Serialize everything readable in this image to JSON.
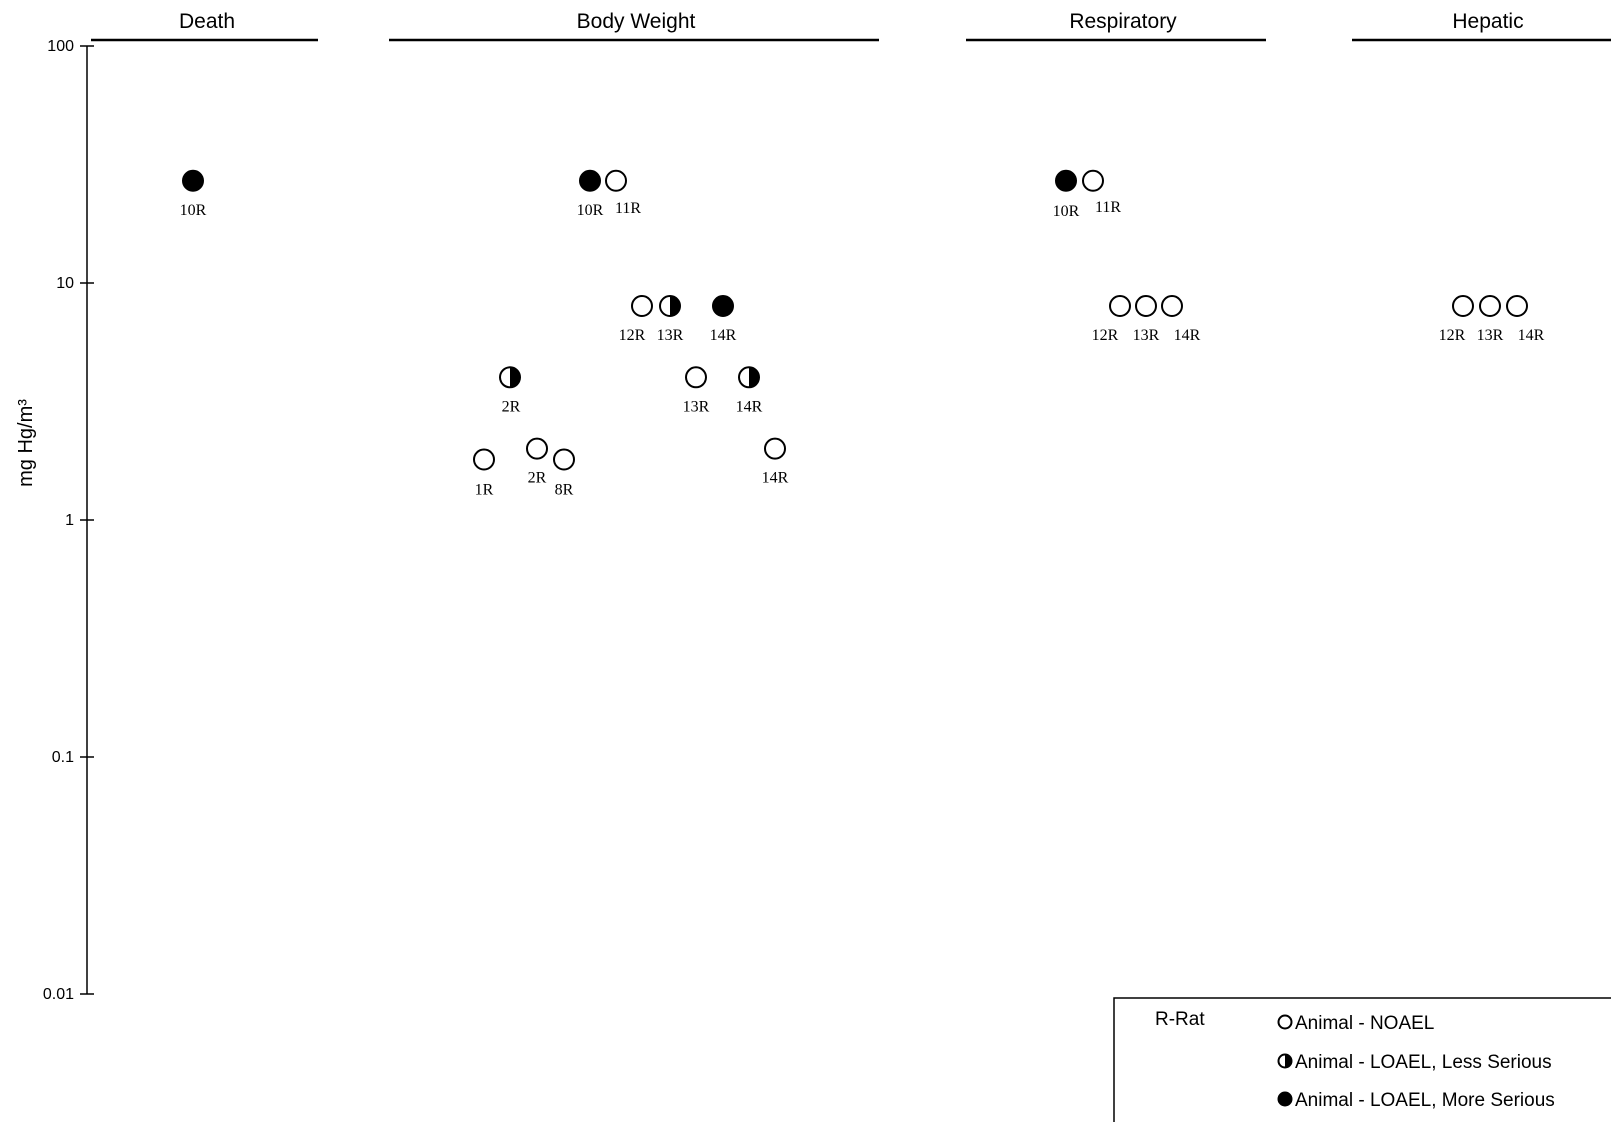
{
  "chart_data": {
    "type": "scatter",
    "ylabel": "mg Hg/m³",
    "yscale": "log",
    "ylim": [
      0.01,
      100
    ],
    "y_ticks": [
      {
        "value": 100,
        "label": "100"
      },
      {
        "value": 10,
        "label": "10"
      },
      {
        "value": 1,
        "label": "1"
      },
      {
        "value": 0.1,
        "label": "0.1"
      },
      {
        "value": 0.01,
        "label": "0.01"
      }
    ],
    "categories": [
      "Death",
      "Body Weight",
      "Respiratory",
      "Hepatic"
    ],
    "points": [
      {
        "category": "Death",
        "y": 27,
        "label": "10R",
        "effect": "more_serious"
      },
      {
        "category": "Body Weight",
        "y": 27,
        "label": "10R",
        "effect": "more_serious"
      },
      {
        "category": "Body Weight",
        "y": 27,
        "label": "11R",
        "effect": "noael"
      },
      {
        "category": "Body Weight",
        "y": 8,
        "label": "12R",
        "effect": "noael"
      },
      {
        "category": "Body Weight",
        "y": 8,
        "label": "13R",
        "effect": "less_serious"
      },
      {
        "category": "Body Weight",
        "y": 8,
        "label": "14R",
        "effect": "more_serious"
      },
      {
        "category": "Body Weight",
        "y": 4,
        "label": "2R",
        "effect": "less_serious"
      },
      {
        "category": "Body Weight",
        "y": 4,
        "label": "13R",
        "effect": "noael"
      },
      {
        "category": "Body Weight",
        "y": 4,
        "label": "14R",
        "effect": "less_serious"
      },
      {
        "category": "Body Weight",
        "y": 1.8,
        "label": "1R",
        "effect": "noael"
      },
      {
        "category": "Body Weight",
        "y": 2,
        "label": "2R",
        "effect": "noael"
      },
      {
        "category": "Body Weight",
        "y": 1.8,
        "label": "8R",
        "effect": "noael"
      },
      {
        "category": "Body Weight",
        "y": 2,
        "label": "14R",
        "effect": "noael"
      },
      {
        "category": "Respiratory",
        "y": 27,
        "label": "10R",
        "effect": "more_serious"
      },
      {
        "category": "Respiratory",
        "y": 27,
        "label": "11R",
        "effect": "noael"
      },
      {
        "category": "Respiratory",
        "y": 8,
        "label": "12R",
        "effect": "noael"
      },
      {
        "category": "Respiratory",
        "y": 8,
        "label": "13R",
        "effect": "noael"
      },
      {
        "category": "Respiratory",
        "y": 8,
        "label": "14R",
        "effect": "noael"
      },
      {
        "category": "Hepatic",
        "y": 8,
        "label": "12R",
        "effect": "noael"
      },
      {
        "category": "Hepatic",
        "y": 8,
        "label": "13R",
        "effect": "noael"
      },
      {
        "category": "Hepatic",
        "y": 8,
        "label": "14R",
        "effect": "noael"
      }
    ],
    "legend": {
      "species": "R-Rat",
      "items": [
        {
          "effect": "noael",
          "label": "Animal - NOAEL"
        },
        {
          "effect": "less_serious",
          "label": "Animal - LOAEL, Less Serious"
        },
        {
          "effect": "more_serious",
          "label": "Animal - LOAEL, More Serious"
        }
      ],
      "placement": "bottom-right"
    }
  }
}
